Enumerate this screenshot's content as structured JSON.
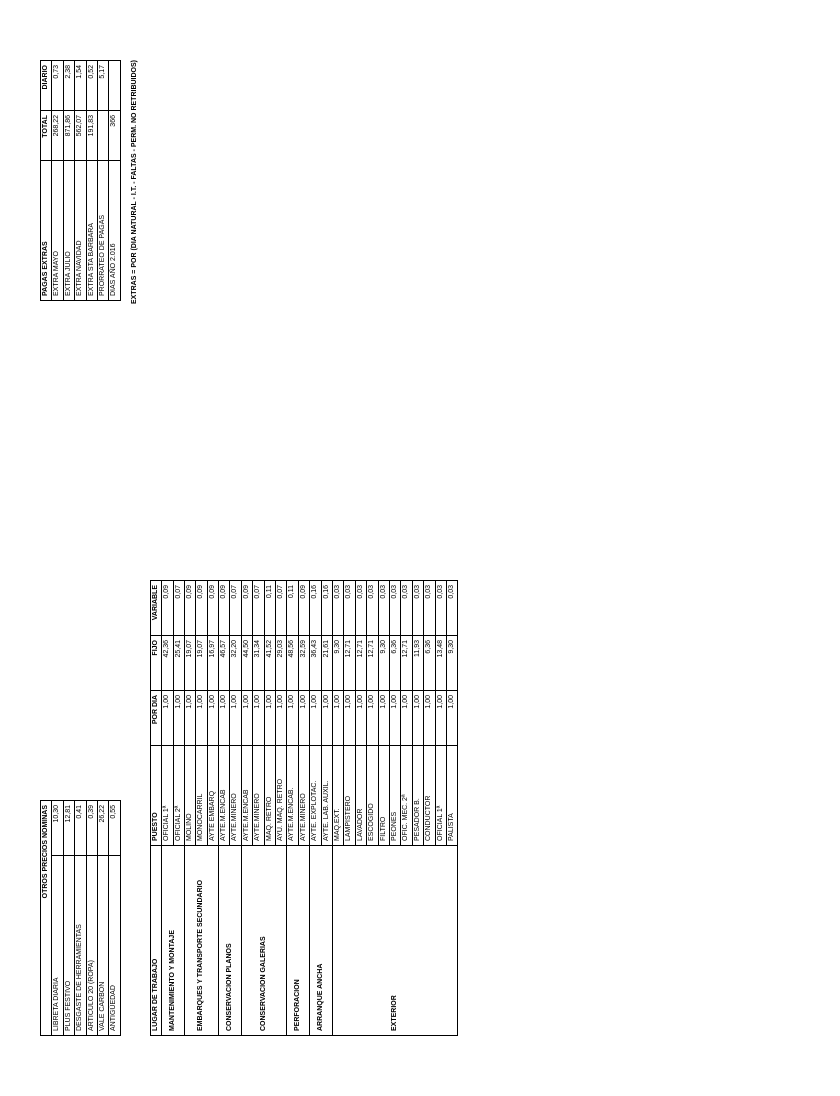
{
  "otros": {
    "header": "OTROS PRECIOS NOMINAS",
    "rows": [
      [
        "LIBRETA DIARIA",
        "10,30"
      ],
      [
        "PLUS FESTIVO",
        "12,81"
      ],
      [
        "DESGASTE DE HERRAMIENTAS",
        "0,41"
      ],
      [
        "ARTICULO 20 (ROPA)",
        "0,39"
      ],
      [
        "VALE CARBON",
        "26,22"
      ],
      [
        "ANTIGÜEDAD",
        "0,55"
      ]
    ]
  },
  "pagas": {
    "header": "PAGAS EXTRAS",
    "colTotal": "TOTAL",
    "colDiario": "DIARIO",
    "rows": [
      [
        "EXTRA MAYO",
        "268,22",
        "0,73"
      ],
      [
        "EXTRA JULIO",
        "871,86",
        "2,38"
      ],
      [
        "EXTRA NAVIDAD",
        "562,07",
        "1,54"
      ],
      [
        "EXTRA STA BARBARA",
        "191,83",
        "0,52"
      ],
      [
        "PRORRATEO DE PAGAS",
        "",
        "5,17"
      ],
      [
        "DIAS AÑO 2.016",
        "366",
        ""
      ]
    ]
  },
  "note": "EXTRAS = POR (DIA NATURAL - I.T. - FALTAS - PERM. NO RETRIBUIDOS)",
  "main": {
    "headers": [
      "LUGAR DE TRABAJO",
      "PUESTO",
      "POR DIA",
      "FIJO",
      "VARIABLE"
    ],
    "groups": [
      {
        "lugar": "MANTENIMIENTO Y MONTAJE",
        "rows": [
          [
            "OFICIAL 1ª",
            "1,00",
            "42,36",
            "0,09"
          ],
          [
            "OFICIAL 2ª",
            "1,00",
            "25,41",
            "0,07"
          ]
        ]
      },
      {
        "lugar": "EMBARQUES Y TRANSPORTE SECUNDARIO",
        "rows": [
          [
            "MOLINO",
            "1,00",
            "19,07",
            "0,09"
          ],
          [
            "MONOCARRIL",
            "1,00",
            "19,07",
            "0,09"
          ],
          [
            "AYTE EMBARQ",
            "1,00",
            "16,97",
            "0,09"
          ]
        ]
      },
      {
        "lugar": "CONSERVACION  PLANOS",
        "rows": [
          [
            "AYTE.M.ENCAB",
            "1,00",
            "46,57",
            "0,09"
          ],
          [
            "AYTE.MINERO",
            "1,00",
            "32,20",
            "0,07"
          ]
        ]
      },
      {
        "lugar": "CONSERVACION  GALERIAS",
        "rows": [
          [
            "AYTE.M.ENCAB",
            "1,00",
            "44,50",
            "0,09"
          ],
          [
            "AYTE.MINERO",
            "1,00",
            "31,34",
            "0,07"
          ],
          [
            "MAQ. RETRO",
            "1,00",
            "41,52",
            "0,11"
          ],
          [
            "AYU. MAQ. RETRO",
            "1,00",
            "29,03",
            "0,07"
          ]
        ]
      },
      {
        "lugar": "PERFORACION",
        "rows": [
          [
            "AYTE.M.ENCAB.",
            "1,00",
            "48,56",
            "0,11"
          ],
          [
            "AYTE.MINERO",
            "1,00",
            "32,59",
            "0,09"
          ]
        ]
      },
      {
        "lugar": "ARRANQUE ANCHA",
        "rows": [
          [
            "AYTE. EXPLOTAC.",
            "1,00",
            "36,43",
            "0,16"
          ],
          [
            "AYTE. LAB. AUXIL.",
            "1,00",
            "21,61",
            "0,16"
          ]
        ]
      },
      {
        "lugar": "EXTERIOR",
        "rows": [
          [
            "MAQ.EXT.",
            "1,00",
            "9,30",
            "0,03"
          ],
          [
            "LAMPISTERO",
            "1,00",
            "12,71",
            "0,03"
          ],
          [
            "LAVADOR",
            "1,00",
            "12,71",
            "0,03"
          ],
          [
            "ESCOGIDO",
            "1,00",
            "12,71",
            "0,03"
          ],
          [
            "FILTRO",
            "1,00",
            "9,30",
            "0,03"
          ],
          [
            "PEONES",
            "1,00",
            "6,36",
            "0,03"
          ],
          [
            "OFIC. MEC. 2ª",
            "1,00",
            "12,71",
            "0,03"
          ],
          [
            "PESADOR B.",
            "1,00",
            "11,93",
            "0,03"
          ],
          [
            "CONDUCTOR",
            "1,00",
            "6,36",
            "0,03"
          ],
          [
            "OFICIAL 1ª",
            "1,00",
            "13,48",
            "0,03"
          ],
          [
            "PALISTA",
            "1,00",
            "9,30",
            "0,03"
          ]
        ]
      }
    ]
  }
}
